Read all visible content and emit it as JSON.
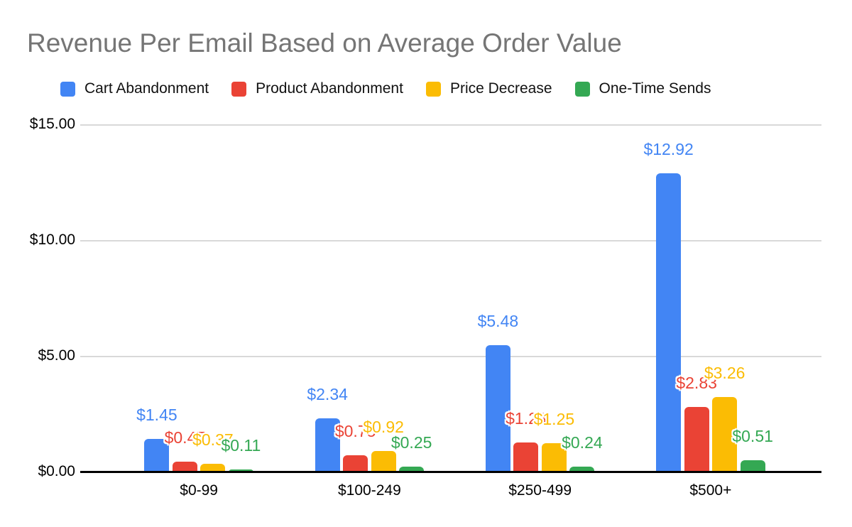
{
  "title": "Revenue Per Email Based on Average Order Value",
  "chart_data": {
    "type": "bar",
    "title": "Revenue Per Email Based on Average Order Value",
    "categories": [
      "$0-99",
      "$100-249",
      "$250-499",
      "$500+"
    ],
    "series": [
      {
        "name": "Cart Abandonment",
        "color": "#4285F4",
        "values": [
          1.45,
          2.34,
          5.48,
          12.92
        ]
      },
      {
        "name": "Product Abandonment",
        "color": "#EA4335",
        "values": [
          0.47,
          0.75,
          1.28,
          2.83
        ]
      },
      {
        "name": "Price Decrease",
        "color": "#FBBC04",
        "values": [
          0.37,
          0.92,
          1.25,
          3.26
        ]
      },
      {
        "name": "One-Time Sends",
        "color": "#34A853",
        "values": [
          0.11,
          0.25,
          0.24,
          0.51
        ]
      }
    ],
    "data_label_format": "$0.00",
    "y_ticks": [
      {
        "value": 0,
        "label": "$0.00"
      },
      {
        "value": 5,
        "label": "$5.00"
      },
      {
        "value": 10,
        "label": "$10.00"
      },
      {
        "value": 15,
        "label": "$15.00"
      }
    ],
    "ylim": [
      0,
      15
    ],
    "grid": true,
    "legend_position": "top",
    "xlabel": "",
    "ylabel": ""
  },
  "colors": {
    "title_text": "#757575",
    "axis_line": "#000000",
    "gridline": "#d9d9d9",
    "background": "#ffffff"
  }
}
